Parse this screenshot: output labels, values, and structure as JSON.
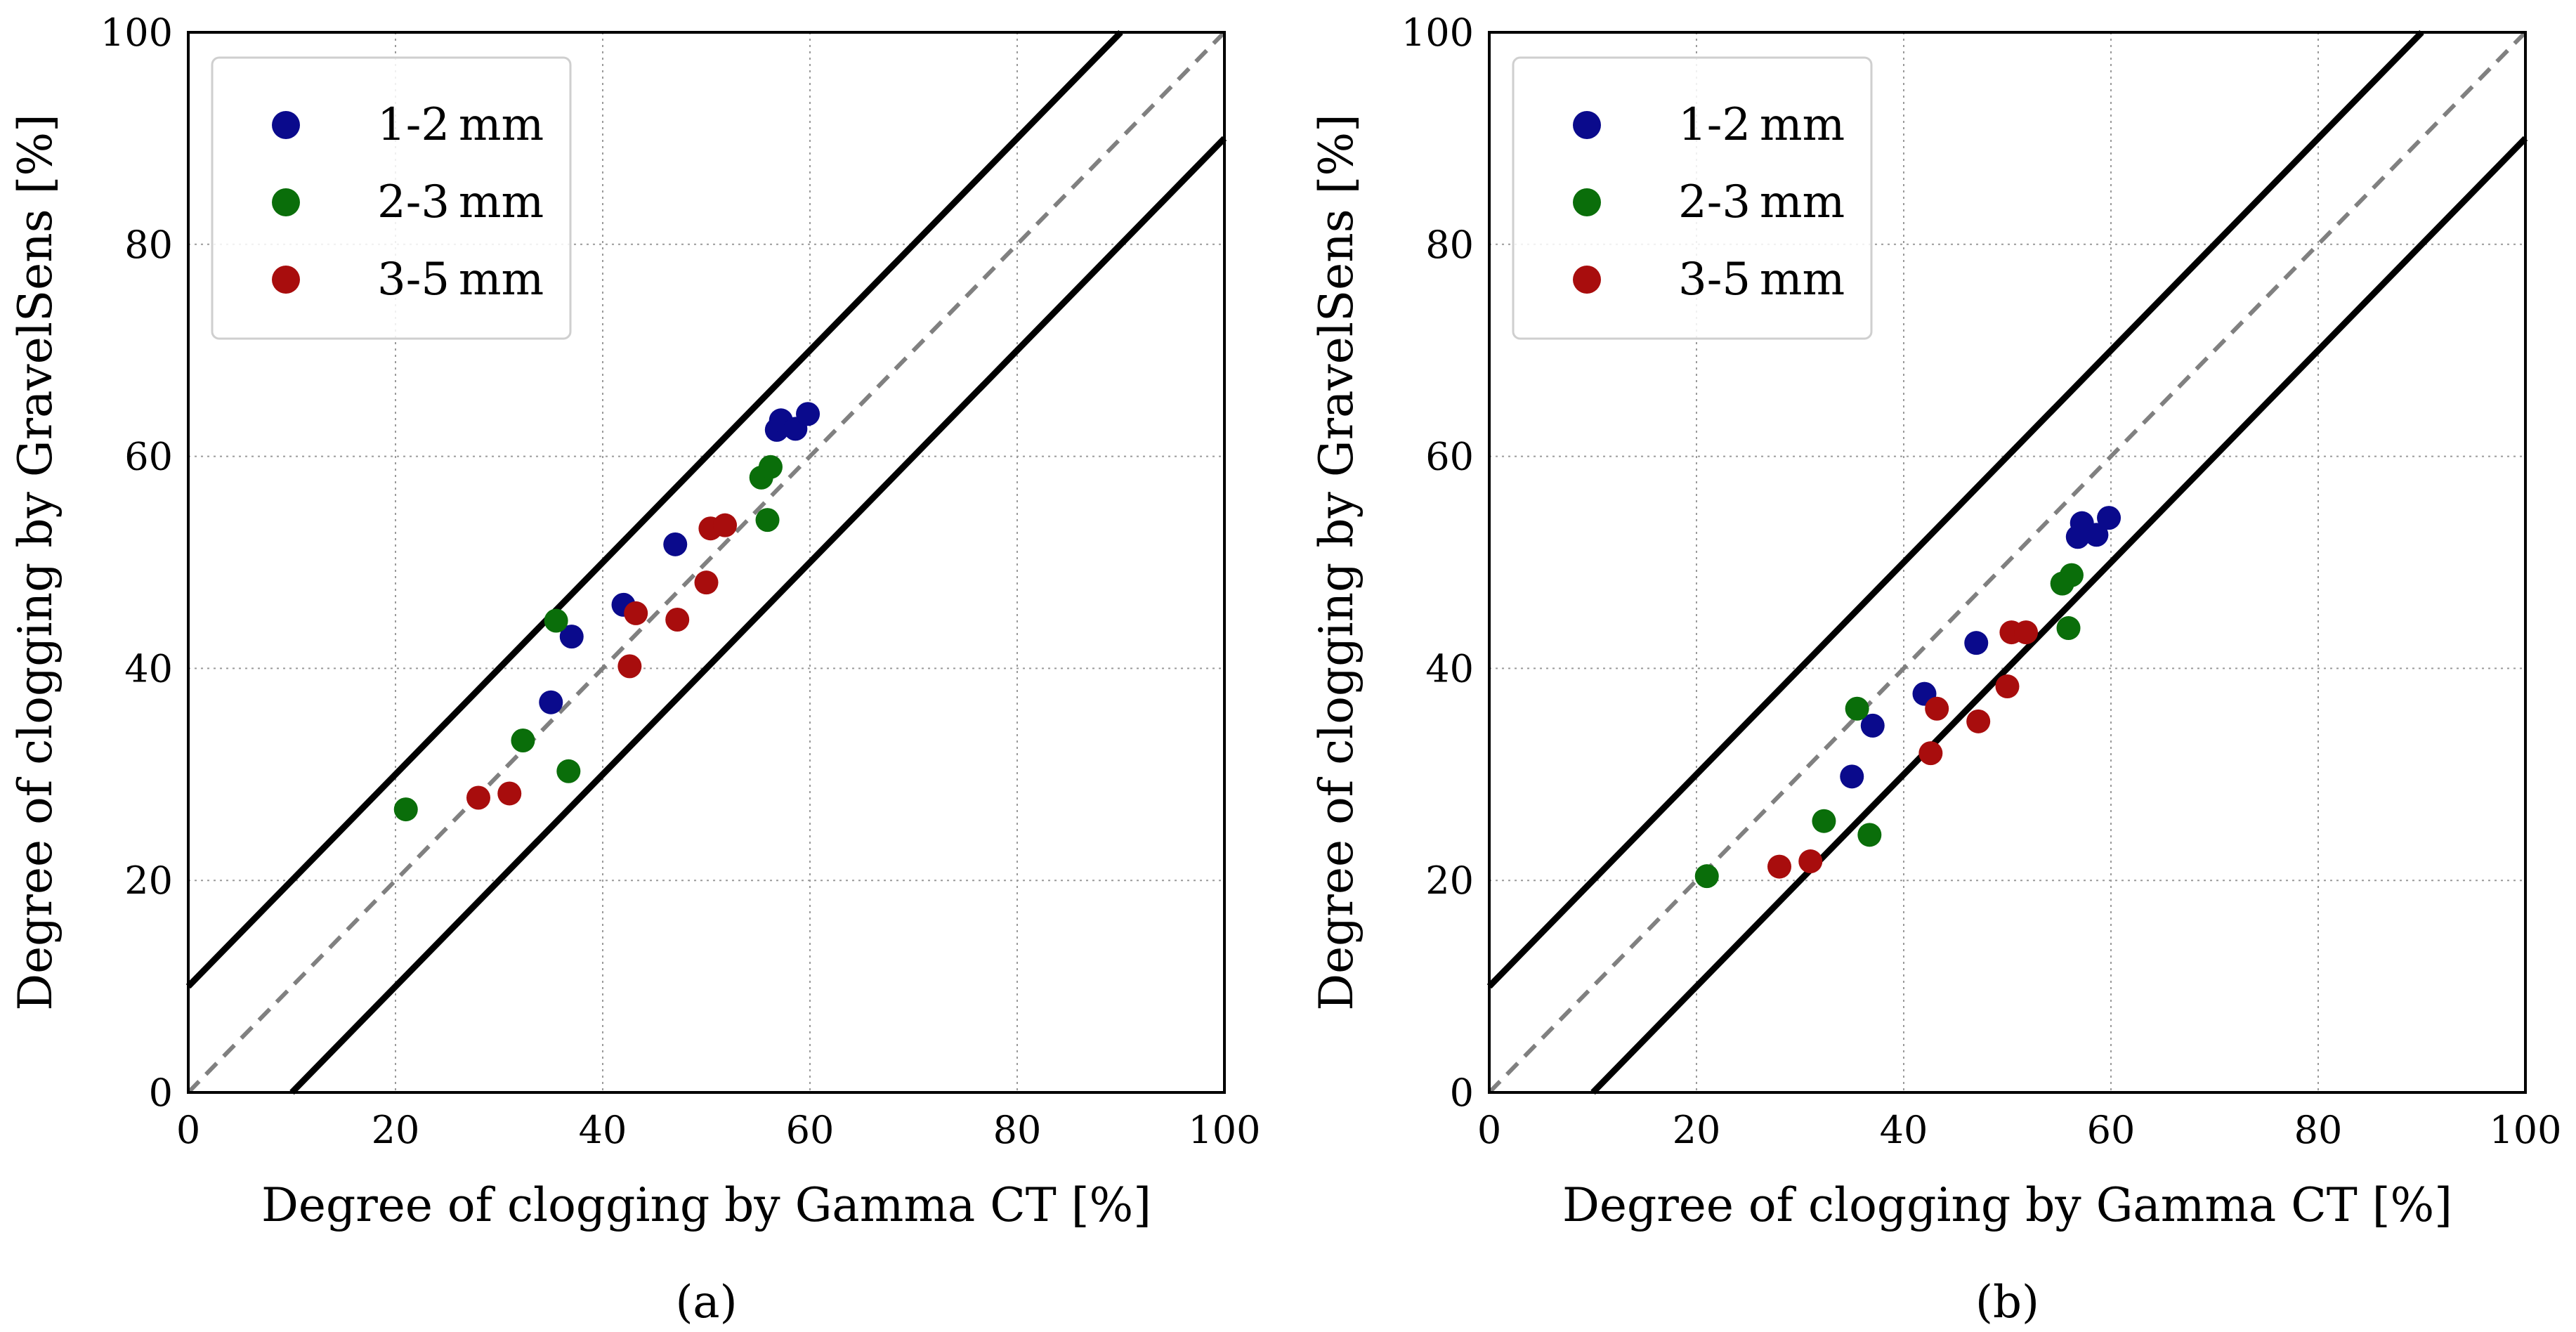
{
  "chart_data": [
    {
      "type": "scatter",
      "caption": "(a)",
      "xlabel": "Degree of clogging by Gamma CT [%]",
      "ylabel": "Degree of clogging by GravelSens [%]",
      "xlim": [
        0,
        100
      ],
      "ylim": [
        0,
        100
      ],
      "xticks": [
        0,
        20,
        40,
        60,
        80,
        100
      ],
      "yticks": [
        0,
        20,
        40,
        60,
        80,
        100
      ],
      "grid": true,
      "legend_position": "top-left",
      "reference_lines": [
        {
          "style": "dashed",
          "color": "#808080",
          "intercept": 0
        },
        {
          "style": "solid",
          "color": "#000000",
          "intercept": 10
        },
        {
          "style": "solid",
          "color": "#000000",
          "intercept": -10
        }
      ],
      "series": [
        {
          "name": "1-2 mm",
          "color": "#0a0a8c",
          "points": [
            [
              35.0,
              36.8
            ],
            [
              37.0,
              43.0
            ],
            [
              42.0,
              46.0
            ],
            [
              47.0,
              51.7
            ],
            [
              56.8,
              62.5
            ],
            [
              57.2,
              63.4
            ],
            [
              58.6,
              62.6
            ],
            [
              59.8,
              64.0
            ]
          ]
        },
        {
          "name": "2-3 mm",
          "color": "#0a6e0a",
          "points": [
            [
              21.0,
              26.7
            ],
            [
              32.3,
              33.2
            ],
            [
              35.5,
              44.5
            ],
            [
              36.7,
              30.3
            ],
            [
              55.3,
              58.0
            ],
            [
              55.9,
              54.0
            ],
            [
              56.2,
              59.0
            ]
          ]
        },
        {
          "name": "3-5 mm",
          "color": "#a80d0d",
          "points": [
            [
              28.0,
              27.8
            ],
            [
              31.0,
              28.2
            ],
            [
              42.6,
              40.2
            ],
            [
              43.2,
              45.2
            ],
            [
              47.2,
              44.6
            ],
            [
              50.0,
              48.1
            ],
            [
              50.4,
              53.2
            ],
            [
              51.8,
              53.5
            ]
          ]
        }
      ]
    },
    {
      "type": "scatter",
      "caption": "(b)",
      "xlabel": "Degree of clogging by Gamma CT [%]",
      "ylabel": "Degree of clogging by GravelSens [%]",
      "xlim": [
        0,
        100
      ],
      "ylim": [
        0,
        100
      ],
      "xticks": [
        0,
        20,
        40,
        60,
        80,
        100
      ],
      "yticks": [
        0,
        20,
        40,
        60,
        80,
        100
      ],
      "grid": true,
      "legend_position": "top-left",
      "reference_lines": [
        {
          "style": "dashed",
          "color": "#808080",
          "intercept": 0
        },
        {
          "style": "solid",
          "color": "#000000",
          "intercept": 10
        },
        {
          "style": "solid",
          "color": "#000000",
          "intercept": -10
        }
      ],
      "series": [
        {
          "name": "1-2 mm",
          "color": "#0a0a8c",
          "points": [
            [
              35.0,
              29.8
            ],
            [
              37.0,
              34.6
            ],
            [
              42.0,
              37.6
            ],
            [
              47.0,
              42.4
            ],
            [
              56.8,
              52.4
            ],
            [
              57.2,
              53.7
            ],
            [
              58.6,
              52.6
            ],
            [
              59.8,
              54.2
            ]
          ]
        },
        {
          "name": "2-3 mm",
          "color": "#0a6e0a",
          "points": [
            [
              21.0,
              20.4
            ],
            [
              32.3,
              25.6
            ],
            [
              35.5,
              36.2
            ],
            [
              36.7,
              24.3
            ],
            [
              55.3,
              48.0
            ],
            [
              55.9,
              43.8
            ],
            [
              56.2,
              48.8
            ]
          ]
        },
        {
          "name": "3-5 mm",
          "color": "#a80d0d",
          "points": [
            [
              28.0,
              21.3
            ],
            [
              31.0,
              21.8
            ],
            [
              42.6,
              32.0
            ],
            [
              43.2,
              36.2
            ],
            [
              47.2,
              35.0
            ],
            [
              50.0,
              38.3
            ],
            [
              50.4,
              43.4
            ],
            [
              51.8,
              43.4
            ]
          ]
        }
      ]
    }
  ]
}
